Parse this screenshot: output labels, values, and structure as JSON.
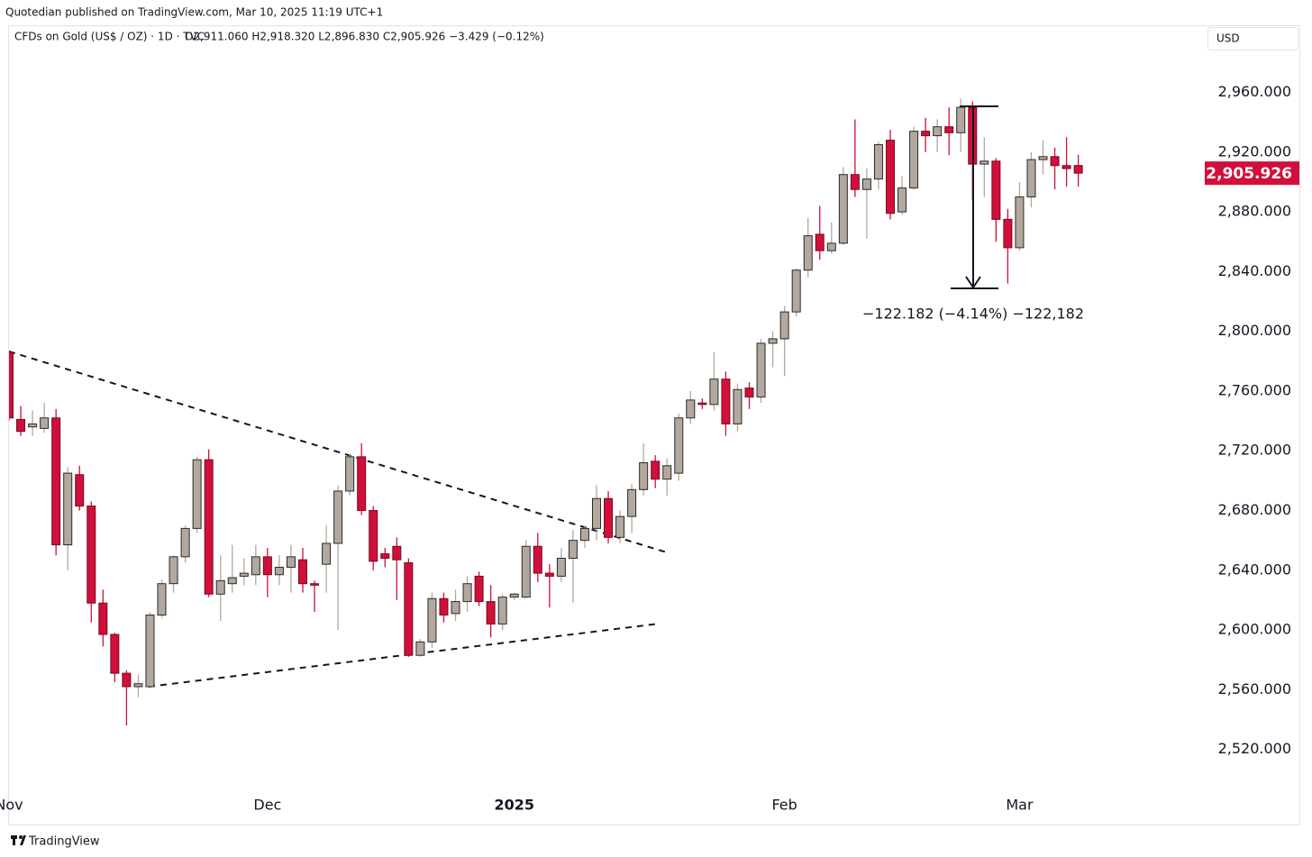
{
  "chart_data": {
    "type": "candlestick",
    "published": "Quotedian published on TradingView.com, Mar 10, 2025 11:19 UTC+1",
    "title": "CFDs on Gold (US$ / OZ) · 1D · TVC",
    "ohlc_text": "O2,911.060 H2,918.320 L2,896.830 C2,905.926 −3.429 (−0.12%)",
    "currency": "USD",
    "annotation": "−122.182 (−4.14%) −122,182",
    "footer": "TradingView",
    "up_color": "#b2a89e",
    "down_color": "#d0103a",
    "categories": [
      "Nov",
      null,
      null,
      null,
      null,
      null,
      null,
      null,
      null,
      null,
      null,
      null,
      null,
      null,
      null,
      null,
      null,
      null,
      null,
      null,
      null,
      null,
      "Dec",
      null,
      null,
      null,
      null,
      null,
      null,
      null,
      null,
      null,
      null,
      null,
      null,
      null,
      null,
      null,
      null,
      null,
      null,
      null,
      null,
      "2025",
      null,
      null,
      null,
      null,
      null,
      null,
      null,
      null,
      null,
      null,
      null,
      null,
      null,
      null,
      null,
      null,
      null,
      null,
      null,
      null,
      null,
      null,
      "Feb",
      null,
      null,
      null,
      null,
      null,
      null,
      null,
      null,
      null,
      null,
      null,
      null,
      null,
      null,
      null,
      null,
      null,
      null,
      null,
      "Mar",
      null,
      null,
      null,
      null,
      null
    ],
    "open": [
      2786,
      2741,
      2736,
      2735,
      2742,
      2657,
      2704,
      2683,
      2618,
      2597,
      2571,
      2562,
      2562,
      2610,
      2631,
      2649,
      2668,
      2714,
      2624,
      2631,
      2636,
      2637,
      2649,
      2637,
      2642,
      2647,
      2631,
      2644,
      2658,
      2693,
      2716,
      2680,
      2651,
      2656,
      2645,
      2583,
      2592,
      2621,
      2611,
      2619,
      2636,
      2619,
      2604,
      2622,
      2622,
      2656,
      2638,
      2636,
      2648,
      2660,
      2668,
      2688,
      2662,
      2676,
      2694,
      2713,
      2701,
      2705,
      2742,
      2752,
      2751,
      2768,
      2738,
      2762,
      2756,
      2792,
      2795,
      2813,
      2841,
      2865,
      2854,
      2859,
      2905,
      2895,
      2902,
      2928,
      2880,
      2896,
      2934,
      2931,
      2937,
      2933,
      2950,
      2912,
      2914,
      2875,
      2856,
      2890,
      2915,
      2917,
      2911,
      2911.06
    ],
    "high": [
      2787,
      2750,
      2747,
      2752,
      2748,
      2709,
      2710,
      2686,
      2627,
      2598,
      2573,
      2570,
      2612,
      2634,
      2650,
      2670,
      2716,
      2721,
      2650,
      2657,
      2648,
      2657,
      2655,
      2650,
      2657,
      2655,
      2633,
      2670,
      2697,
      2718,
      2725,
      2683,
      2655,
      2662,
      2648,
      2594,
      2625,
      2625,
      2627,
      2636,
      2639,
      2630,
      2624,
      2625,
      2660,
      2665,
      2644,
      2655,
      2667,
      2670,
      2697,
      2693,
      2680,
      2698,
      2725,
      2717,
      2715,
      2745,
      2760,
      2755,
      2786,
      2773,
      2765,
      2766,
      2795,
      2800,
      2817,
      2842,
      2876,
      2884,
      2873,
      2910,
      2942,
      2909,
      2927,
      2935,
      2904,
      2937,
      2943,
      2942,
      2950,
      2956,
      2954,
      2930,
      2916,
      2882,
      2900,
      2920,
      2928,
      2923,
      2930,
      2918.32
    ],
    "low": [
      2740,
      2730,
      2730,
      2732,
      2650,
      2640,
      2680,
      2605,
      2589,
      2565,
      2536,
      2555,
      2561,
      2608,
      2625,
      2645,
      2665,
      2622,
      2606,
      2625,
      2630,
      2630,
      2622,
      2630,
      2625,
      2625,
      2612,
      2625,
      2600,
      2690,
      2677,
      2640,
      2642,
      2620,
      2582,
      2582,
      2588,
      2605,
      2606,
      2612,
      2616,
      2595,
      2600,
      2620,
      2621,
      2632,
      2615,
      2632,
      2618,
      2655,
      2660,
      2658,
      2658,
      2665,
      2690,
      2695,
      2690,
      2700,
      2738,
      2748,
      2747,
      2730,
      2733,
      2748,
      2752,
      2776,
      2770,
      2810,
      2836,
      2848,
      2852,
      2858,
      2890,
      2862,
      2895,
      2875,
      2878,
      2895,
      2920,
      2920,
      2918,
      2920,
      2888,
      2890,
      2860,
      2832,
      2854,
      2883,
      2905,
      2895,
      2897,
      2896.83
    ],
    "close": [
      2742,
      2733,
      2738,
      2742,
      2657,
      2705,
      2683,
      2618,
      2597,
      2571,
      2562,
      2564,
      2610,
      2631,
      2649,
      2668,
      2714,
      2624,
      2633,
      2635,
      2638,
      2649,
      2637,
      2642,
      2649,
      2631,
      2630,
      2658,
      2693,
      2716,
      2680,
      2646,
      2648,
      2647,
      2583,
      2592,
      2621,
      2610,
      2619,
      2631,
      2619,
      2604,
      2622,
      2624,
      2656,
      2638,
      2636,
      2648,
      2660,
      2668,
      2688,
      2662,
      2676,
      2694,
      2712,
      2701,
      2710,
      2742,
      2754,
      2751,
      2768,
      2738,
      2761,
      2756,
      2792,
      2795,
      2813,
      2841,
      2864,
      2854,
      2859,
      2905,
      2895,
      2902,
      2925,
      2879,
      2896,
      2934,
      2931,
      2937,
      2933,
      2950,
      2912,
      2914,
      2875,
      2856,
      2890,
      2915,
      2917,
      2911,
      2909,
      2905.926
    ],
    "last_price": {
      "value": 2905.926,
      "label": "2,905.926"
    },
    "ylim": [
      2492,
      3005
    ],
    "yticks": [
      {
        "value": 2520,
        "label": "2,520.000"
      },
      {
        "value": 2560,
        "label": "2,560.000"
      },
      {
        "value": 2600,
        "label": "2,600.000"
      },
      {
        "value": 2640,
        "label": "2,640.000"
      },
      {
        "value": 2680,
        "label": "2,680.000"
      },
      {
        "value": 2720,
        "label": "2,720.000"
      },
      {
        "value": 2760,
        "label": "2,760.000"
      },
      {
        "value": 2800,
        "label": "2,800.000"
      },
      {
        "value": 2840,
        "label": "2,840.000"
      },
      {
        "value": 2880,
        "label": "2,880.000"
      },
      {
        "value": 2920,
        "label": "2,920.000"
      },
      {
        "value": 2960,
        "label": "2,960.000"
      }
    ]
  }
}
